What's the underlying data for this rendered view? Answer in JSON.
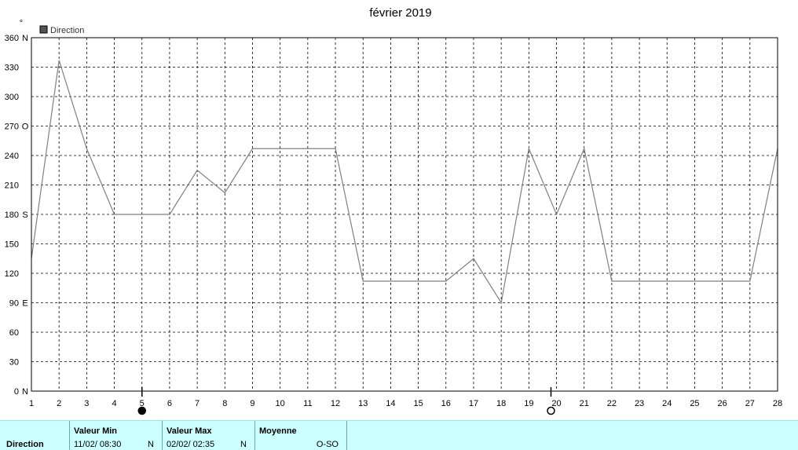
{
  "chart_data": {
    "type": "line",
    "title": "février 2019",
    "ylabel": "°",
    "legend": {
      "label": "Direction",
      "placement": "top-left"
    },
    "x": [
      1,
      2,
      3,
      4,
      5,
      6,
      7,
      8,
      9,
      10,
      11,
      12,
      13,
      14,
      15,
      16,
      17,
      18,
      19,
      20,
      21,
      22,
      23,
      24,
      25,
      26,
      27,
      28
    ],
    "xlim": [
      1,
      28
    ],
    "ylim": [
      0,
      360
    ],
    "y_ticks": [
      {
        "value": 0,
        "label": "0",
        "dir": "N"
      },
      {
        "value": 30,
        "label": "30",
        "dir": ""
      },
      {
        "value": 60,
        "label": "60",
        "dir": ""
      },
      {
        "value": 90,
        "label": "90",
        "dir": "E"
      },
      {
        "value": 120,
        "label": "120",
        "dir": ""
      },
      {
        "value": 150,
        "label": "150",
        "dir": ""
      },
      {
        "value": 180,
        "label": "180",
        "dir": "S"
      },
      {
        "value": 210,
        "label": "210",
        "dir": ""
      },
      {
        "value": 240,
        "label": "240",
        "dir": ""
      },
      {
        "value": 270,
        "label": "270",
        "dir": "O"
      },
      {
        "value": 300,
        "label": "300",
        "dir": ""
      },
      {
        "value": 330,
        "label": "330",
        "dir": ""
      },
      {
        "value": 360,
        "label": "360",
        "dir": "N"
      }
    ],
    "series": [
      {
        "name": "Direction",
        "x": [
          1,
          2,
          3,
          4,
          5,
          6,
          7,
          8,
          9,
          10,
          11,
          12,
          13,
          14,
          15,
          16,
          17,
          18,
          19,
          20,
          21,
          22,
          23,
          24,
          25,
          26,
          27,
          28
        ],
        "values": [
          135,
          337,
          247,
          180,
          180,
          180,
          225,
          202,
          247,
          247,
          247,
          247,
          112,
          112,
          112,
          112,
          135,
          90,
          247,
          180,
          247,
          112,
          112,
          112,
          112,
          112,
          112,
          247
        ]
      }
    ],
    "moon_phases": [
      {
        "x": 5,
        "phase": "new-moon"
      },
      {
        "x": 19.8,
        "phase": "full-moon"
      }
    ],
    "grid": true,
    "line_color": "#808080"
  },
  "stats": {
    "row_label": "Direction",
    "min": {
      "header": "Valeur Min",
      "datetime": "11/02/  08:30",
      "dir": "N"
    },
    "max": {
      "header": "Valeur Max",
      "datetime": "02/02/  02:35",
      "dir": "N"
    },
    "mean": {
      "header": "Moyenne",
      "value": "O-SO"
    }
  }
}
